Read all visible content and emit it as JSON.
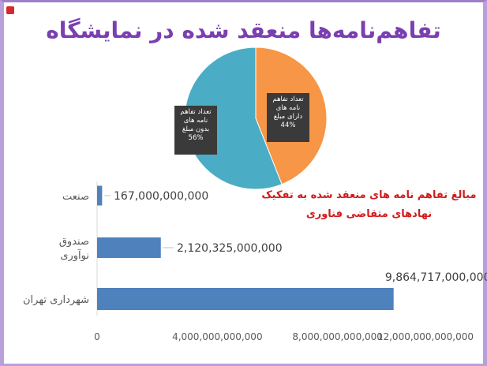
{
  "page": {
    "title": "تفاهم‌نامه‌ها منعقد شده در نمایشگاه"
  },
  "colors": {
    "title": "#7a3fb0",
    "pie_orange": "#f79646",
    "pie_blue": "#4bacc6",
    "bar": "#4f81bd",
    "subtitle": "#d01c1c",
    "frame": "#b9a0dc"
  },
  "chart_data": [
    {
      "type": "pie",
      "title": "",
      "slices": [
        {
          "label": "تعداد تفاهم نامه های دارای مبلغ",
          "percent_label": "44%",
          "value": 44,
          "color": "#f79646"
        },
        {
          "label": "تعداد تفاهم نامه های بدون مبلغ",
          "percent_label": "56%",
          "value": 56,
          "color": "#4bacc6"
        }
      ]
    },
    {
      "type": "bar",
      "orientation": "horizontal",
      "title_lines": [
        "مبالغ تفاهم نامه های منعقد شده به تفکیک",
        "نهادهای متقاضی فناوری"
      ],
      "categories": [
        "صنعت",
        "صندوق نوآوری",
        "شهرداری تهران"
      ],
      "category_lines": [
        [
          "صنعت"
        ],
        [
          "صندوق",
          "نوآوری"
        ],
        [
          "شهرداری تهران"
        ]
      ],
      "values": [
        167000000000,
        2120325000000,
        9864717000000
      ],
      "data_labels": [
        "167,000,000,000",
        "2,120,325,000,000",
        "9,864,717,000,000"
      ],
      "xlim": [
        0,
        12000000000000
      ],
      "xticks": [
        0,
        4000000000000,
        8000000000000,
        12000000000000
      ],
      "xtick_labels": [
        "0",
        "4,000,000,000,000",
        "8,000,000,000,000",
        "12,000,000,000,000"
      ],
      "grid": false,
      "legend": "none"
    }
  ]
}
